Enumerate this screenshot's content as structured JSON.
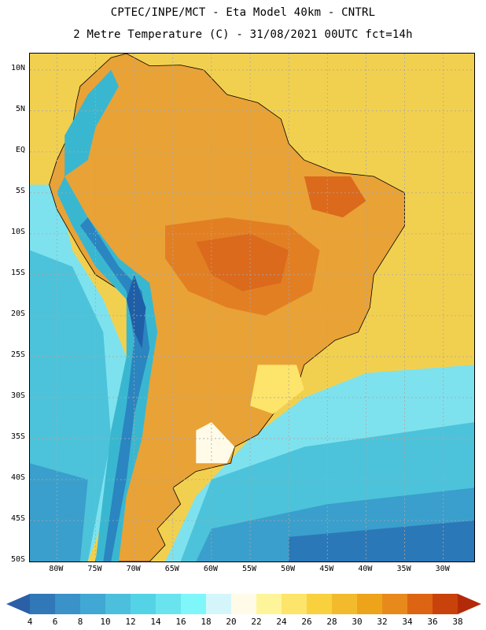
{
  "title": {
    "line1": "CPTEC/INPE/MCT -  Eta Model 40km - CNTRL",
    "line2": "2 Metre Temperature (C) - 31/08/2021 00UTC fct=14h"
  },
  "map": {
    "lat_labels": [
      "10N",
      "5N",
      "EQ",
      "5S",
      "10S",
      "15S",
      "20S",
      "25S",
      "30S",
      "35S",
      "40S",
      "45S",
      "50S"
    ],
    "lon_labels": [
      "80W",
      "75W",
      "70W",
      "65W",
      "60W",
      "55W",
      "50W",
      "45W",
      "40W",
      "35W",
      "30W"
    ],
    "lat_range": [
      12,
      -50
    ],
    "lon_range": [
      -83.5,
      -26
    ],
    "ocean_color": "#f2d04f",
    "land_color": "#e9a236",
    "grid_color": "#a8a8a8",
    "hot_zone_color": "#db6a1d",
    "andes_colors": [
      "#3ab7d0",
      "#2a85c0",
      "#1f5fa8"
    ],
    "cool_ocean_colors": [
      "#7ee2ee",
      "#4cc3da",
      "#3a9fcc",
      "#2b78b8"
    ]
  },
  "colorbar": {
    "labels": [
      "4",
      "6",
      "8",
      "10",
      "12",
      "14",
      "16",
      "18",
      "20",
      "22",
      "24",
      "26",
      "28",
      "30",
      "32",
      "34",
      "36",
      "38"
    ],
    "colors": [
      "#2b5fa6",
      "#3178b8",
      "#3a92c8",
      "#41a8d3",
      "#4cbfdd",
      "#55d3e6",
      "#69e4ee",
      "#7ff7fa",
      "#d4f6fa",
      "#fffbe8",
      "#fef59a",
      "#fde46a",
      "#f9d13f",
      "#f2bb2d",
      "#eda41a",
      "#e88a1b",
      "#dd6412",
      "#c9420b",
      "#b32a08"
    ]
  }
}
